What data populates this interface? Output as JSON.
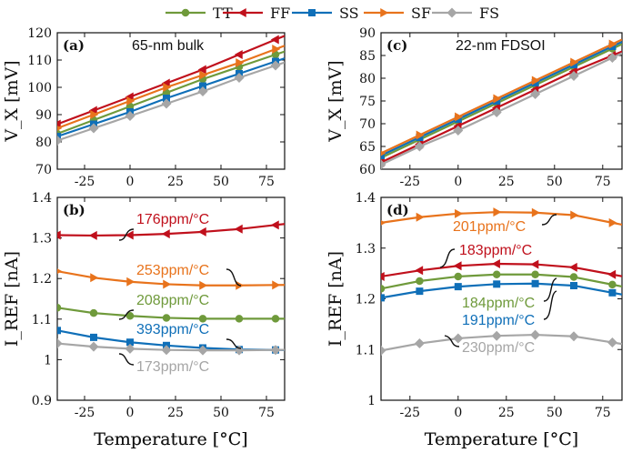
{
  "colors": {
    "TT": "#6f9a3b",
    "FF": "#c0101c",
    "SS": "#0f6fb8",
    "SF": "#e8731c",
    "FS": "#a6a6a6"
  },
  "legend": {
    "placement": "top-center",
    "entries": [
      {
        "key": "TT",
        "label": "TT",
        "marker": "circle"
      },
      {
        "key": "FF",
        "label": "FF",
        "marker": "triangle-left"
      },
      {
        "key": "SS",
        "label": "SS",
        "marker": "square"
      },
      {
        "key": "SF",
        "label": "SF",
        "marker": "triangle-right"
      },
      {
        "key": "FS",
        "label": "FS",
        "marker": "diamond"
      }
    ]
  },
  "xlabel": "Temperature [°C]",
  "chart_data": [
    {
      "id": "a",
      "type": "line",
      "label": "(a)",
      "title": "65-nm bulk",
      "ylabel": "V_X [mV]",
      "xlim": [
        -40,
        85
      ],
      "ylim": [
        70,
        120
      ],
      "xticks": [
        "-25",
        "0",
        "25",
        "50",
        "75"
      ],
      "xtick_values": [
        -25,
        0,
        25,
        50,
        75
      ],
      "yticks": [
        "70",
        "80",
        "90",
        "100",
        "110",
        "120"
      ],
      "ytick_values": [
        70,
        80,
        90,
        100,
        110,
        120
      ],
      "x": [
        -40,
        -20,
        0,
        20,
        40,
        60,
        80
      ],
      "series": [
        {
          "name": "TT",
          "values": [
            83.0,
            88.0,
            93.0,
            98.0,
            103.0,
            107.5,
            112.0
          ]
        },
        {
          "name": "FF",
          "values": [
            86.5,
            91.5,
            96.5,
            101.5,
            106.5,
            112.0,
            117.5
          ]
        },
        {
          "name": "SS",
          "values": [
            82.0,
            86.5,
            91.0,
            96.0,
            100.5,
            105.0,
            109.5
          ]
        },
        {
          "name": "SF",
          "values": [
            85.0,
            90.0,
            95.0,
            100.0,
            104.5,
            109.0,
            114.0
          ]
        },
        {
          "name": "FS",
          "values": [
            80.5,
            85.0,
            89.5,
            94.0,
            98.5,
            103.5,
            108.0
          ]
        }
      ]
    },
    {
      "id": "b",
      "type": "line",
      "label": "(b)",
      "ylabel": "I_REF [nA]",
      "xlim": [
        -40,
        85
      ],
      "ylim": [
        0.9,
        1.4
      ],
      "xticks": [
        "-25",
        "0",
        "25",
        "50",
        "75"
      ],
      "xtick_values": [
        -25,
        0,
        25,
        50,
        75
      ],
      "yticks": [
        "0.9",
        "1",
        "1.1",
        "1.2",
        "1.3",
        "1.4"
      ],
      "ytick_values": [
        0.9,
        1.0,
        1.1,
        1.2,
        1.3,
        1.4
      ],
      "x": [
        -40,
        -20,
        0,
        20,
        40,
        60,
        80
      ],
      "series": [
        {
          "name": "TT",
          "values": [
            1.128,
            1.115,
            1.108,
            1.103,
            1.101,
            1.101,
            1.101
          ]
        },
        {
          "name": "FF",
          "values": [
            1.307,
            1.306,
            1.307,
            1.31,
            1.315,
            1.322,
            1.332
          ]
        },
        {
          "name": "SS",
          "values": [
            1.072,
            1.055,
            1.043,
            1.035,
            1.029,
            1.025,
            1.024
          ]
        },
        {
          "name": "SF",
          "values": [
            1.218,
            1.202,
            1.192,
            1.186,
            1.183,
            1.183,
            1.184
          ]
        },
        {
          "name": "FS",
          "values": [
            1.04,
            1.032,
            1.027,
            1.024,
            1.023,
            1.023,
            1.024
          ]
        }
      ],
      "annotations": [
        {
          "series": "FF",
          "text": "176ppm/°C"
        },
        {
          "series": "SF",
          "text": "253ppm/°C"
        },
        {
          "series": "TT",
          "text": "208ppm/°C"
        },
        {
          "series": "SS",
          "text": "393ppm/°C"
        },
        {
          "series": "FS",
          "text": "173ppm/°C"
        }
      ]
    },
    {
      "id": "c",
      "type": "line",
      "label": "(c)",
      "title": "22-nm FDSOI",
      "ylabel": "V_X [mV]",
      "xlim": [
        -40,
        85
      ],
      "ylim": [
        60,
        90
      ],
      "xticks": [
        "-25",
        "0",
        "25",
        "50",
        "75"
      ],
      "xtick_values": [
        -25,
        0,
        25,
        50,
        75
      ],
      "yticks": [
        "60",
        "65",
        "70",
        "75",
        "80",
        "85",
        "90"
      ],
      "ytick_values": [
        60,
        65,
        70,
        75,
        80,
        85,
        90
      ],
      "x": [
        -40,
        -20,
        0,
        20,
        40,
        60,
        80
      ],
      "series": [
        {
          "name": "TT",
          "values": [
            62.5,
            66.5,
            70.5,
            74.5,
            78.5,
            82.5,
            86.5
          ]
        },
        {
          "name": "FF",
          "values": [
            61.5,
            65.5,
            69.5,
            73.5,
            77.5,
            81.5,
            85.0
          ]
        },
        {
          "name": "SS",
          "values": [
            63.0,
            67.0,
            71.0,
            75.0,
            79.0,
            83.0,
            87.0
          ]
        },
        {
          "name": "SF",
          "values": [
            63.5,
            67.5,
            71.5,
            75.5,
            79.5,
            83.5,
            87.5
          ]
        },
        {
          "name": "FS",
          "values": [
            61.0,
            65.0,
            68.5,
            72.5,
            76.5,
            80.5,
            84.5
          ]
        }
      ]
    },
    {
      "id": "d",
      "type": "line",
      "label": "(d)",
      "ylabel": "I_REF [nA]",
      "xlim": [
        -40,
        85
      ],
      "ylim": [
        1.0,
        1.4
      ],
      "xticks": [
        "-25",
        "0",
        "25",
        "50",
        "75"
      ],
      "xtick_values": [
        -25,
        0,
        25,
        50,
        75
      ],
      "yticks": [
        "1",
        "1.1",
        "1.2",
        "1.3",
        "1.4"
      ],
      "ytick_values": [
        1.0,
        1.1,
        1.2,
        1.3,
        1.4
      ],
      "x": [
        -40,
        -20,
        0,
        20,
        40,
        60,
        80
      ],
      "series": [
        {
          "name": "TT",
          "values": [
            1.22,
            1.235,
            1.244,
            1.248,
            1.248,
            1.243,
            1.228
          ]
        },
        {
          "name": "FF",
          "values": [
            1.244,
            1.256,
            1.265,
            1.269,
            1.268,
            1.262,
            1.248
          ]
        },
        {
          "name": "SS",
          "values": [
            1.202,
            1.215,
            1.224,
            1.229,
            1.23,
            1.226,
            1.212
          ]
        },
        {
          "name": "SF",
          "values": [
            1.35,
            1.361,
            1.368,
            1.371,
            1.37,
            1.365,
            1.35
          ]
        },
        {
          "name": "FS",
          "values": [
            1.098,
            1.112,
            1.122,
            1.127,
            1.129,
            1.126,
            1.114
          ]
        }
      ],
      "annotations": [
        {
          "series": "SF",
          "text": "201ppm/°C"
        },
        {
          "series": "FF",
          "text": "183ppm/°C"
        },
        {
          "series": "TT",
          "text": "184ppm/°C"
        },
        {
          "series": "SS",
          "text": "191ppm/°C"
        },
        {
          "series": "FS",
          "text": "230ppm/°C"
        }
      ]
    }
  ]
}
